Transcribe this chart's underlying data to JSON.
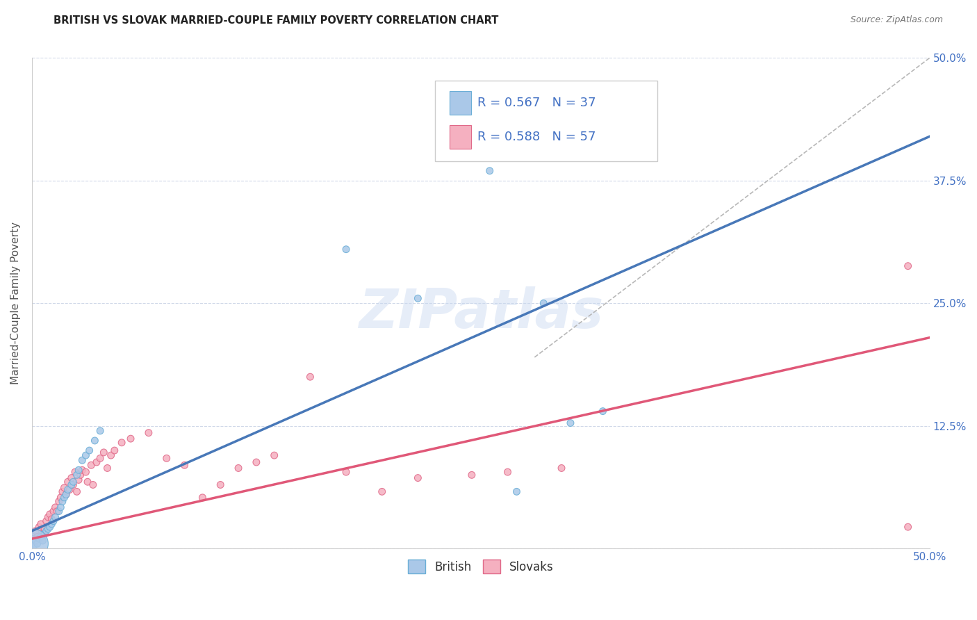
{
  "title": "BRITISH VS SLOVAK MARRIED-COUPLE FAMILY POVERTY CORRELATION CHART",
  "source": "Source: ZipAtlas.com",
  "ylabel": "Married-Couple Family Poverty",
  "xlim": [
    0.0,
    0.5
  ],
  "ylim": [
    0.0,
    0.5
  ],
  "xticks": [
    0.0,
    0.1,
    0.2,
    0.3,
    0.4,
    0.5
  ],
  "yticks": [
    0.0,
    0.125,
    0.25,
    0.375,
    0.5
  ],
  "xticklabels": [
    "0.0%",
    "",
    "",
    "",
    "",
    "50.0%"
  ],
  "yticklabels": [
    "",
    "12.5%",
    "25.0%",
    "37.5%",
    "50.0%"
  ],
  "british_color": "#aac8e8",
  "british_edge_color": "#6aaed6",
  "slovak_color": "#f5b0c0",
  "slovak_edge_color": "#e06888",
  "british_line_color": "#4878b8",
  "slovak_line_color": "#e05878",
  "dashed_line_color": "#b8b8b8",
  "R_british": 0.567,
  "N_british": 37,
  "R_slovak": 0.588,
  "N_slovak": 57,
  "watermark": "ZIPatlas",
  "background_color": "#ffffff",
  "grid_color": "#d0d8e8",
  "british_line": [
    [
      0.0,
      0.018
    ],
    [
      0.5,
      0.42
    ]
  ],
  "slovak_line": [
    [
      0.0,
      0.01
    ],
    [
      0.5,
      0.215
    ]
  ],
  "dashed_line": [
    [
      0.28,
      0.195
    ],
    [
      0.5,
      0.5
    ]
  ],
  "british_points": [
    [
      0.001,
      0.003
    ],
    [
      0.002,
      0.008
    ],
    [
      0.003,
      0.005
    ],
    [
      0.004,
      0.01
    ],
    [
      0.005,
      0.012
    ],
    [
      0.006,
      0.008
    ],
    [
      0.007,
      0.015
    ],
    [
      0.008,
      0.018
    ],
    [
      0.009,
      0.02
    ],
    [
      0.01,
      0.022
    ],
    [
      0.011,
      0.025
    ],
    [
      0.012,
      0.028
    ],
    [
      0.013,
      0.032
    ],
    [
      0.015,
      0.038
    ],
    [
      0.016,
      0.042
    ],
    [
      0.017,
      0.048
    ],
    [
      0.018,
      0.052
    ],
    [
      0.019,
      0.055
    ],
    [
      0.02,
      0.06
    ],
    [
      0.022,
      0.065
    ],
    [
      0.023,
      0.068
    ],
    [
      0.025,
      0.075
    ],
    [
      0.026,
      0.08
    ],
    [
      0.028,
      0.09
    ],
    [
      0.03,
      0.095
    ],
    [
      0.032,
      0.1
    ],
    [
      0.035,
      0.11
    ],
    [
      0.038,
      0.12
    ],
    [
      0.175,
      0.305
    ],
    [
      0.215,
      0.255
    ],
    [
      0.245,
      0.415
    ],
    [
      0.255,
      0.385
    ],
    [
      0.285,
      0.25
    ],
    [
      0.3,
      0.128
    ],
    [
      0.318,
      0.14
    ],
    [
      0.27,
      0.058
    ],
    [
      0.001,
      0.005
    ]
  ],
  "british_sizes": [
    50,
    50,
    50,
    50,
    50,
    50,
    50,
    50,
    50,
    50,
    50,
    50,
    50,
    50,
    50,
    50,
    50,
    50,
    50,
    50,
    50,
    50,
    50,
    50,
    50,
    50,
    50,
    50,
    50,
    50,
    50,
    50,
    50,
    50,
    50,
    50,
    900
  ],
  "slovak_points": [
    [
      0.001,
      0.01
    ],
    [
      0.002,
      0.018
    ],
    [
      0.003,
      0.012
    ],
    [
      0.004,
      0.022
    ],
    [
      0.005,
      0.025
    ],
    [
      0.006,
      0.015
    ],
    [
      0.007,
      0.02
    ],
    [
      0.008,
      0.028
    ],
    [
      0.009,
      0.032
    ],
    [
      0.01,
      0.035
    ],
    [
      0.011,
      0.03
    ],
    [
      0.012,
      0.038
    ],
    [
      0.013,
      0.042
    ],
    [
      0.014,
      0.038
    ],
    [
      0.015,
      0.048
    ],
    [
      0.016,
      0.052
    ],
    [
      0.017,
      0.058
    ],
    [
      0.018,
      0.062
    ],
    [
      0.019,
      0.055
    ],
    [
      0.02,
      0.068
    ],
    [
      0.021,
      0.06
    ],
    [
      0.022,
      0.072
    ],
    [
      0.023,
      0.065
    ],
    [
      0.024,
      0.078
    ],
    [
      0.025,
      0.058
    ],
    [
      0.026,
      0.07
    ],
    [
      0.027,
      0.075
    ],
    [
      0.028,
      0.08
    ],
    [
      0.03,
      0.078
    ],
    [
      0.031,
      0.068
    ],
    [
      0.033,
      0.085
    ],
    [
      0.034,
      0.065
    ],
    [
      0.036,
      0.088
    ],
    [
      0.038,
      0.092
    ],
    [
      0.04,
      0.098
    ],
    [
      0.042,
      0.082
    ],
    [
      0.044,
      0.095
    ],
    [
      0.046,
      0.1
    ],
    [
      0.05,
      0.108
    ],
    [
      0.055,
      0.112
    ],
    [
      0.065,
      0.118
    ],
    [
      0.075,
      0.092
    ],
    [
      0.085,
      0.085
    ],
    [
      0.095,
      0.052
    ],
    [
      0.105,
      0.065
    ],
    [
      0.115,
      0.082
    ],
    [
      0.125,
      0.088
    ],
    [
      0.135,
      0.095
    ],
    [
      0.155,
      0.175
    ],
    [
      0.175,
      0.078
    ],
    [
      0.195,
      0.058
    ],
    [
      0.215,
      0.072
    ],
    [
      0.245,
      0.075
    ],
    [
      0.265,
      0.078
    ],
    [
      0.295,
      0.082
    ],
    [
      0.488,
      0.288
    ],
    [
      0.488,
      0.022
    ]
  ],
  "slovak_sizes": [
    50,
    50,
    50,
    50,
    50,
    50,
    50,
    50,
    50,
    50,
    50,
    50,
    50,
    50,
    50,
    50,
    50,
    50,
    50,
    50,
    50,
    50,
    50,
    50,
    50,
    50,
    50,
    50,
    50,
    50,
    50,
    50,
    50,
    50,
    50,
    50,
    50,
    50,
    50,
    50,
    50,
    50,
    50,
    50,
    50,
    50,
    50,
    50,
    50,
    50,
    50,
    50,
    50,
    50,
    50,
    50,
    50
  ]
}
